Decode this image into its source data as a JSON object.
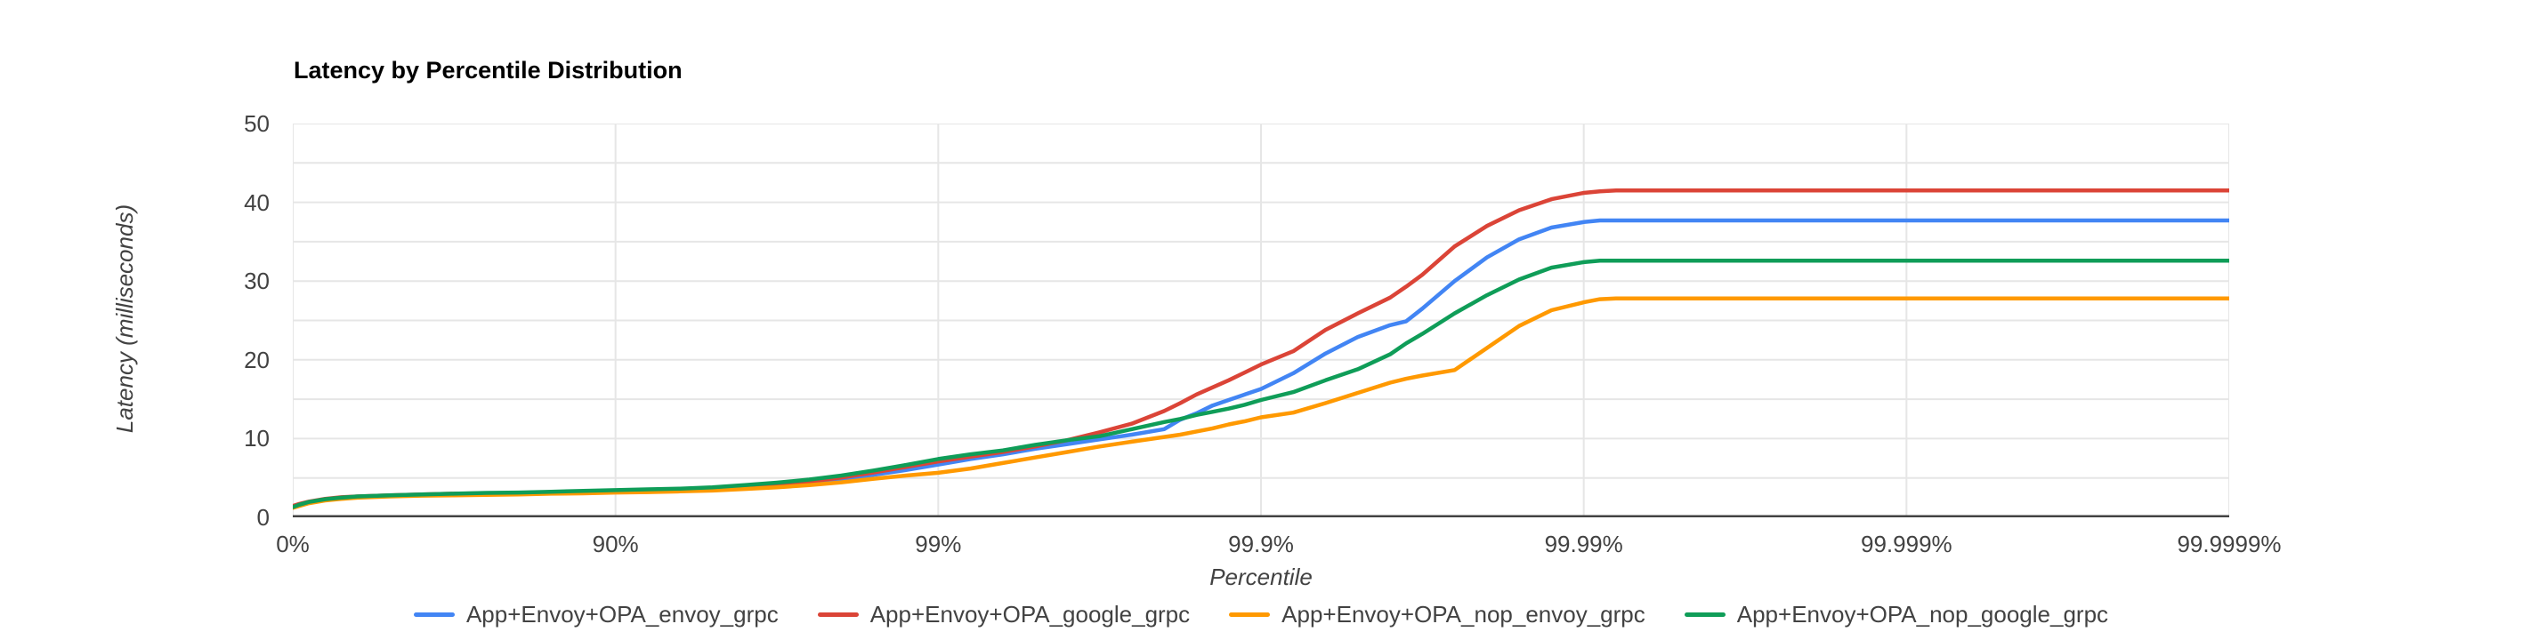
{
  "page": {
    "background": "#ffffff"
  },
  "colors": {
    "gridline": "#e6e6e6",
    "axis_line": "#424242",
    "label_text": "#424242",
    "title_text": "#000000"
  },
  "chart_data": {
    "type": "line",
    "title": "Latency by Percentile Distribution",
    "xlabel": "Percentile",
    "ylabel": "Latency (milliseconds)",
    "grid": true,
    "legend_position": "bottom",
    "x_axis": {
      "scale": "log-percentile, equal spacing per decade of nines",
      "tick_labels": [
        "0%",
        "90%",
        "99%",
        "99.9%",
        "99.99%",
        "99.999%",
        "99.9999%"
      ]
    },
    "y_axis": {
      "min": 0,
      "max": 50,
      "ticks": [
        0,
        10,
        20,
        30,
        40,
        50
      ],
      "gridline_step": 5
    },
    "x_nines": [
      0,
      0.02,
      0.05,
      0.1,
      0.15,
      0.2,
      0.3,
      0.4,
      0.5,
      0.6,
      0.7,
      0.8,
      0.9,
      1.0,
      1.1,
      1.2,
      1.3,
      1.4,
      1.5,
      1.6,
      1.7,
      1.8,
      1.9,
      2.0,
      2.1,
      2.2,
      2.3,
      2.4,
      2.5,
      2.6,
      2.7,
      2.75,
      2.8,
      2.85,
      2.9,
      2.95,
      3.0,
      3.1,
      3.2,
      3.3,
      3.4,
      3.45,
      3.5,
      3.6,
      3.7,
      3.8,
      3.9,
      4.0,
      4.05,
      4.1,
      4.3,
      4.6,
      5.0,
      5.5,
      6.0
    ],
    "series": [
      {
        "name": "App+Envoy+OPA_envoy_grpc",
        "color": "#4285f4",
        "values": [
          1.4,
          1.6,
          1.9,
          2.3,
          2.5,
          2.6,
          2.75,
          2.85,
          2.9,
          3.0,
          3.05,
          3.1,
          3.2,
          3.25,
          3.3,
          3.4,
          3.55,
          3.8,
          4.05,
          4.4,
          4.8,
          5.4,
          6.0,
          6.7,
          7.4,
          8.0,
          8.7,
          9.3,
          9.9,
          10.5,
          11.2,
          12.4,
          13.2,
          14.2,
          14.9,
          15.6,
          16.3,
          18.3,
          20.8,
          22.9,
          24.4,
          24.9,
          26.5,
          30.0,
          33.0,
          35.3,
          36.8,
          37.5,
          37.7,
          37.7,
          37.7,
          37.7,
          37.7,
          37.7,
          37.7
        ]
      },
      {
        "name": "App+Envoy+OPA_google_grpc",
        "color": "#db4437",
        "values": [
          1.45,
          1.7,
          2.0,
          2.35,
          2.55,
          2.65,
          2.8,
          2.9,
          3.0,
          3.05,
          3.1,
          3.2,
          3.25,
          3.35,
          3.4,
          3.5,
          3.65,
          3.95,
          4.2,
          4.55,
          5.05,
          5.7,
          6.4,
          7.1,
          7.7,
          8.3,
          9.0,
          9.8,
          10.8,
          11.9,
          13.5,
          14.5,
          15.6,
          16.5,
          17.4,
          18.4,
          19.4,
          21.1,
          23.8,
          25.9,
          27.9,
          29.3,
          30.8,
          34.4,
          37.0,
          39.0,
          40.4,
          41.2,
          41.4,
          41.5,
          41.5,
          41.5,
          41.5,
          41.5,
          41.5
        ]
      },
      {
        "name": "App+Envoy+OPA_nop_envoy_grpc",
        "color": "#ff9900",
        "values": [
          1.2,
          1.45,
          1.8,
          2.15,
          2.35,
          2.5,
          2.65,
          2.75,
          2.8,
          2.85,
          2.9,
          3.0,
          3.05,
          3.15,
          3.2,
          3.3,
          3.4,
          3.6,
          3.8,
          4.1,
          4.45,
          4.9,
          5.3,
          5.65,
          6.2,
          6.9,
          7.6,
          8.3,
          9.0,
          9.6,
          10.2,
          10.5,
          10.9,
          11.3,
          11.8,
          12.2,
          12.7,
          13.3,
          14.5,
          15.8,
          17.1,
          17.6,
          18.0,
          18.7,
          21.5,
          24.3,
          26.3,
          27.3,
          27.7,
          27.8,
          27.8,
          27.8,
          27.8,
          27.8,
          27.8
        ]
      },
      {
        "name": "App+Envoy+OPA_nop_google_grpc",
        "color": "#0f9d58",
        "values": [
          1.3,
          1.6,
          1.95,
          2.3,
          2.5,
          2.65,
          2.8,
          2.9,
          3.0,
          3.1,
          3.15,
          3.25,
          3.35,
          3.45,
          3.55,
          3.65,
          3.8,
          4.1,
          4.4,
          4.8,
          5.3,
          5.95,
          6.65,
          7.4,
          8.0,
          8.5,
          9.2,
          9.8,
          10.3,
          11.2,
          12.1,
          12.5,
          13.0,
          13.4,
          13.8,
          14.3,
          14.9,
          15.9,
          17.4,
          18.8,
          20.7,
          22.1,
          23.3,
          25.9,
          28.2,
          30.2,
          31.7,
          32.4,
          32.6,
          32.6,
          32.6,
          32.6,
          32.6,
          32.6,
          32.6
        ]
      }
    ]
  }
}
